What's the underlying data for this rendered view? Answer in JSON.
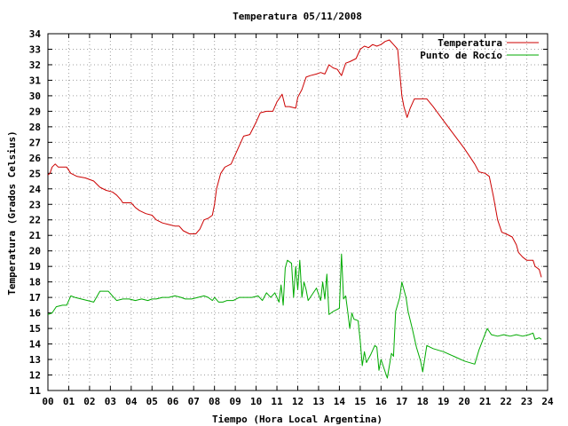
{
  "chart_data": {
    "type": "line",
    "title": "Temperatura 05/11/2008",
    "xlabel": "Tiempo (Hora Local Argentina)",
    "ylabel": "Temperatura (Grados Celsius)",
    "xlim": [
      0,
      24
    ],
    "ylim": [
      11,
      34
    ],
    "x_ticks": [
      "00",
      "01",
      "02",
      "03",
      "04",
      "05",
      "06",
      "07",
      "08",
      "09",
      "10",
      "11",
      "12",
      "13",
      "14",
      "15",
      "16",
      "17",
      "18",
      "19",
      "20",
      "21",
      "22",
      "23",
      "24"
    ],
    "y_ticks": [
      "11",
      "12",
      "13",
      "14",
      "15",
      "16",
      "17",
      "18",
      "19",
      "20",
      "21",
      "22",
      "23",
      "24",
      "25",
      "26",
      "27",
      "28",
      "29",
      "30",
      "31",
      "32",
      "33",
      "34"
    ],
    "grid": true,
    "legend_position": "top-right",
    "series": [
      {
        "name": "Temperatura",
        "color": "#cc0000",
        "points": [
          [
            0.0,
            24.9
          ],
          [
            0.1,
            25.0
          ],
          [
            0.2,
            25.4
          ],
          [
            0.35,
            25.6
          ],
          [
            0.5,
            25.4
          ],
          [
            0.9,
            25.4
          ],
          [
            1.1,
            25.0
          ],
          [
            1.4,
            24.8
          ],
          [
            1.8,
            24.7
          ],
          [
            2.2,
            24.5
          ],
          [
            2.5,
            24.1
          ],
          [
            2.8,
            23.9
          ],
          [
            3.1,
            23.8
          ],
          [
            3.3,
            23.6
          ],
          [
            3.5,
            23.3
          ],
          [
            3.6,
            23.1
          ],
          [
            4.0,
            23.1
          ],
          [
            4.2,
            22.8
          ],
          [
            4.4,
            22.6
          ],
          [
            4.7,
            22.4
          ],
          [
            5.0,
            22.3
          ],
          [
            5.2,
            22.0
          ],
          [
            5.5,
            21.8
          ],
          [
            5.8,
            21.7
          ],
          [
            6.1,
            21.6
          ],
          [
            6.3,
            21.6
          ],
          [
            6.5,
            21.3
          ],
          [
            6.8,
            21.1
          ],
          [
            7.1,
            21.1
          ],
          [
            7.3,
            21.4
          ],
          [
            7.5,
            22.0
          ],
          [
            7.7,
            22.1
          ],
          [
            7.9,
            22.3
          ],
          [
            8.0,
            23.0
          ],
          [
            8.1,
            24.0
          ],
          [
            8.3,
            25.0
          ],
          [
            8.5,
            25.4
          ],
          [
            8.8,
            25.6
          ],
          [
            9.0,
            26.2
          ],
          [
            9.2,
            26.8
          ],
          [
            9.4,
            27.4
          ],
          [
            9.7,
            27.5
          ],
          [
            10.0,
            28.3
          ],
          [
            10.2,
            28.9
          ],
          [
            10.5,
            29.0
          ],
          [
            10.8,
            29.0
          ],
          [
            11.0,
            29.6
          ],
          [
            11.25,
            30.1
          ],
          [
            11.4,
            29.3
          ],
          [
            11.6,
            29.3
          ],
          [
            11.9,
            29.2
          ],
          [
            12.0,
            29.9
          ],
          [
            12.2,
            30.4
          ],
          [
            12.4,
            31.2
          ],
          [
            12.6,
            31.3
          ],
          [
            12.9,
            31.4
          ],
          [
            13.1,
            31.5
          ],
          [
            13.3,
            31.4
          ],
          [
            13.5,
            32.0
          ],
          [
            13.7,
            31.8
          ],
          [
            13.9,
            31.7
          ],
          [
            14.1,
            31.3
          ],
          [
            14.3,
            32.1
          ],
          [
            14.5,
            32.2
          ],
          [
            14.8,
            32.4
          ],
          [
            15.0,
            33.0
          ],
          [
            15.2,
            33.2
          ],
          [
            15.4,
            33.1
          ],
          [
            15.6,
            33.3
          ],
          [
            15.8,
            33.2
          ],
          [
            16.0,
            33.3
          ],
          [
            16.2,
            33.5
          ],
          [
            16.4,
            33.6
          ],
          [
            16.6,
            33.3
          ],
          [
            16.8,
            33.0
          ],
          [
            16.9,
            31.5
          ],
          [
            17.0,
            30.0
          ],
          [
            17.1,
            29.3
          ],
          [
            17.25,
            28.6
          ],
          [
            17.4,
            29.2
          ],
          [
            17.6,
            29.8
          ],
          [
            17.9,
            29.8
          ],
          [
            18.2,
            29.8
          ],
          [
            18.5,
            29.3
          ],
          [
            19.0,
            28.4
          ],
          [
            19.5,
            27.5
          ],
          [
            20.0,
            26.6
          ],
          [
            20.5,
            25.6
          ],
          [
            20.7,
            25.1
          ],
          [
            21.0,
            25.0
          ],
          [
            21.2,
            24.8
          ],
          [
            21.4,
            23.5
          ],
          [
            21.6,
            22.0
          ],
          [
            21.8,
            21.2
          ],
          [
            22.0,
            21.1
          ],
          [
            22.3,
            20.9
          ],
          [
            22.5,
            20.4
          ],
          [
            22.6,
            19.9
          ],
          [
            22.8,
            19.6
          ],
          [
            23.0,
            19.4
          ],
          [
            23.3,
            19.4
          ],
          [
            23.4,
            19.0
          ],
          [
            23.5,
            18.9
          ],
          [
            23.6,
            18.8
          ],
          [
            23.7,
            18.3
          ]
        ]
      },
      {
        "name": "Punto de Rocío",
        "color": "#00aa00",
        "points": [
          [
            0.0,
            15.9
          ],
          [
            0.2,
            16.0
          ],
          [
            0.4,
            16.4
          ],
          [
            0.7,
            16.5
          ],
          [
            0.9,
            16.5
          ],
          [
            1.1,
            17.1
          ],
          [
            1.3,
            17.0
          ],
          [
            1.6,
            16.9
          ],
          [
            1.9,
            16.8
          ],
          [
            2.2,
            16.7
          ],
          [
            2.5,
            17.4
          ],
          [
            2.9,
            17.4
          ],
          [
            3.1,
            17.1
          ],
          [
            3.3,
            16.8
          ],
          [
            3.6,
            16.9
          ],
          [
            3.9,
            16.9
          ],
          [
            4.2,
            16.8
          ],
          [
            4.5,
            16.9
          ],
          [
            4.8,
            16.8
          ],
          [
            5.0,
            16.9
          ],
          [
            5.2,
            16.9
          ],
          [
            5.5,
            17.0
          ],
          [
            5.8,
            17.0
          ],
          [
            6.1,
            17.1
          ],
          [
            6.4,
            17.0
          ],
          [
            6.6,
            16.9
          ],
          [
            6.9,
            16.9
          ],
          [
            7.2,
            17.0
          ],
          [
            7.5,
            17.1
          ],
          [
            7.7,
            17.0
          ],
          [
            7.9,
            16.8
          ],
          [
            8.0,
            17.0
          ],
          [
            8.2,
            16.7
          ],
          [
            8.4,
            16.7
          ],
          [
            8.6,
            16.8
          ],
          [
            8.9,
            16.8
          ],
          [
            9.2,
            17.0
          ],
          [
            9.5,
            17.0
          ],
          [
            9.8,
            17.0
          ],
          [
            10.1,
            17.1
          ],
          [
            10.3,
            16.8
          ],
          [
            10.5,
            17.3
          ],
          [
            10.7,
            17.0
          ],
          [
            10.9,
            17.3
          ],
          [
            11.1,
            16.7
          ],
          [
            11.2,
            17.8
          ],
          [
            11.3,
            16.5
          ],
          [
            11.4,
            18.9
          ],
          [
            11.5,
            19.4
          ],
          [
            11.7,
            19.2
          ],
          [
            11.8,
            17.0
          ],
          [
            11.9,
            19.0
          ],
          [
            12.0,
            17.5
          ],
          [
            12.1,
            19.4
          ],
          [
            12.2,
            17.0
          ],
          [
            12.3,
            18.0
          ],
          [
            12.4,
            17.5
          ],
          [
            12.5,
            16.8
          ],
          [
            12.7,
            17.2
          ],
          [
            12.9,
            17.6
          ],
          [
            13.1,
            16.8
          ],
          [
            13.2,
            18.0
          ],
          [
            13.3,
            16.9
          ],
          [
            13.4,
            18.5
          ],
          [
            13.5,
            15.9
          ],
          [
            13.7,
            16.1
          ],
          [
            14.0,
            16.3
          ],
          [
            14.1,
            19.8
          ],
          [
            14.2,
            16.9
          ],
          [
            14.3,
            17.1
          ],
          [
            14.4,
            16.1
          ],
          [
            14.5,
            15.0
          ],
          [
            14.6,
            16.0
          ],
          [
            14.7,
            15.6
          ],
          [
            14.9,
            15.5
          ],
          [
            15.0,
            14.2
          ],
          [
            15.1,
            12.6
          ],
          [
            15.2,
            13.5
          ],
          [
            15.3,
            12.8
          ],
          [
            15.5,
            13.3
          ],
          [
            15.7,
            13.9
          ],
          [
            15.8,
            13.8
          ],
          [
            15.9,
            12.3
          ],
          [
            16.0,
            13.0
          ],
          [
            16.2,
            12.2
          ],
          [
            16.3,
            11.8
          ],
          [
            16.5,
            13.4
          ],
          [
            16.6,
            13.2
          ],
          [
            16.7,
            16.1
          ],
          [
            16.9,
            17.0
          ],
          [
            17.0,
            18.0
          ],
          [
            17.2,
            17.0
          ],
          [
            17.3,
            16.1
          ],
          [
            17.5,
            15.0
          ],
          [
            17.7,
            13.8
          ],
          [
            17.9,
            12.9
          ],
          [
            18.0,
            12.2
          ],
          [
            18.2,
            13.9
          ],
          [
            18.5,
            13.7
          ],
          [
            19.0,
            13.5
          ],
          [
            19.5,
            13.2
          ],
          [
            20.0,
            12.9
          ],
          [
            20.5,
            12.7
          ],
          [
            20.7,
            13.6
          ],
          [
            20.9,
            14.3
          ],
          [
            21.1,
            15.0
          ],
          [
            21.3,
            14.6
          ],
          [
            21.6,
            14.5
          ],
          [
            21.9,
            14.6
          ],
          [
            22.2,
            14.5
          ],
          [
            22.5,
            14.6
          ],
          [
            22.8,
            14.5
          ],
          [
            23.1,
            14.6
          ],
          [
            23.3,
            14.7
          ],
          [
            23.4,
            14.3
          ],
          [
            23.6,
            14.4
          ],
          [
            23.7,
            14.3
          ]
        ]
      }
    ]
  }
}
